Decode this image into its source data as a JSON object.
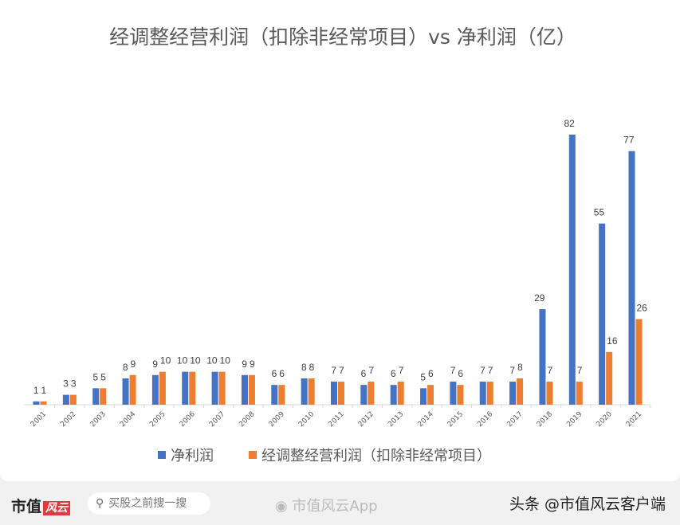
{
  "chart_data": {
    "type": "bar",
    "title": "经调整经营利润（扣除非经常项目）vs 净利润（亿）",
    "categories": [
      "2001",
      "2002",
      "2003",
      "2004",
      "2005",
      "2006",
      "2007",
      "2008",
      "2009",
      "2010",
      "2011",
      "2012",
      "2013",
      "2014",
      "2015",
      "2016",
      "2017",
      "2018",
      "2019",
      "2020",
      "2021"
    ],
    "series": [
      {
        "name": "净利润",
        "color": "#4472c4",
        "values": [
          1,
          3,
          5,
          8,
          9,
          10,
          10,
          9,
          6,
          8,
          7,
          6,
          6,
          5,
          7,
          7,
          7,
          29,
          82,
          55,
          77
        ]
      },
      {
        "name": "经调整经营利润（扣除非经常项目）",
        "color": "#ed7d31",
        "values": [
          1,
          3,
          5,
          9,
          10,
          10,
          10,
          9,
          6,
          8,
          7,
          7,
          7,
          6,
          6,
          7,
          8,
          7,
          7,
          16,
          26
        ]
      }
    ],
    "ylim": [
      0,
      82
    ],
    "grid": false,
    "legend": "bottom",
    "data_labels": true
  },
  "footer": {
    "logo": "市值",
    "logo_mark": "风云",
    "search_placeholder": "买股之前搜一搜",
    "weibo": "市值风云App",
    "toutiao": "头条 @市值风云客户端"
  }
}
